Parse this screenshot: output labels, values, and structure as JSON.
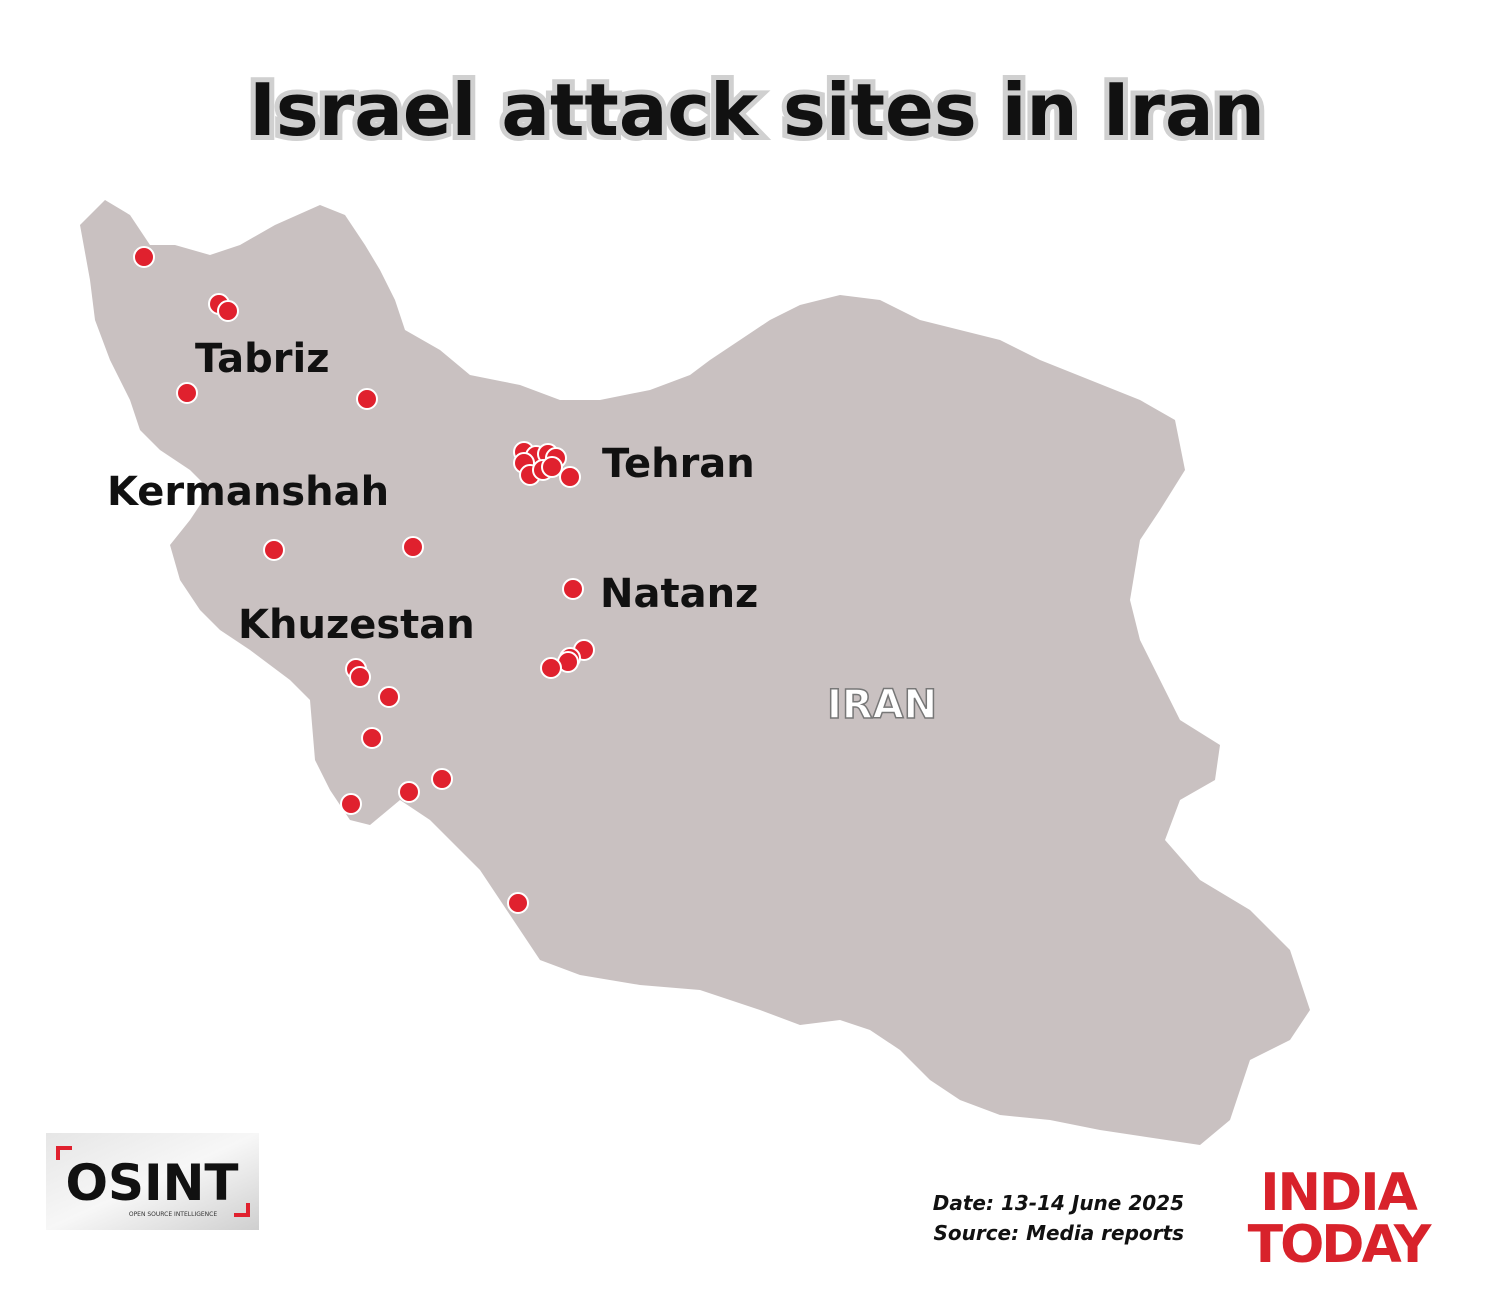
{
  "header": {
    "title": "Israel attack sites in Iran"
  },
  "map": {
    "country_label": "IRAN",
    "places": [
      {
        "label": "Tabriz"
      },
      {
        "label": "Kermanshah"
      },
      {
        "label": "Tehran"
      },
      {
        "label": "Natanz"
      },
      {
        "label": "Khuzestan"
      }
    ]
  },
  "footer": {
    "date": "Date: 13-14 June 2025",
    "source": "Source: Media reports",
    "osint_logo": {
      "name": "OSINT",
      "tagline": "OPEN SOURCE INTELLIGENCE"
    },
    "publisher_logo": {
      "line1": "INDIA",
      "line2": "TODAY"
    }
  }
}
